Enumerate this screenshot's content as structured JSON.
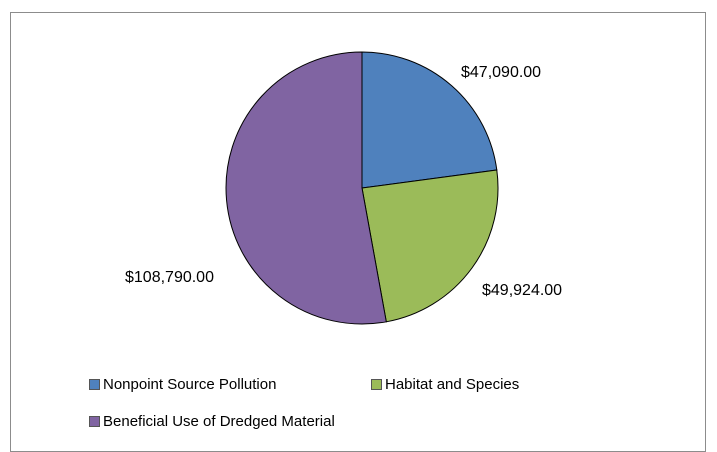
{
  "chart_data": {
    "type": "pie",
    "title": "",
    "categories": [
      "Nonpoint Source Pollution",
      "Habitat and Species",
      "Beneficial Use of Dredged Material"
    ],
    "values": [
      47090.0,
      49924.0,
      108790.0
    ],
    "data_labels": [
      "$47,090.00",
      "$49,924.00",
      "$108,790.00"
    ],
    "colors": [
      "#4F81BD",
      "#9BBB59",
      "#8064A2"
    ],
    "legend_position": "bottom"
  }
}
